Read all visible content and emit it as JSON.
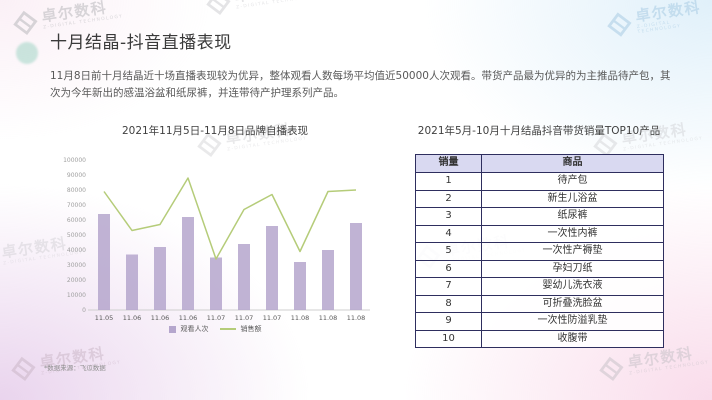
{
  "brand": {
    "name": "卓尔数科",
    "subtitle": "Z-DIGITAL TECHNOLOGY"
  },
  "slide": {
    "title": "十月结晶-抖音直播表现",
    "body": "11月8日前十月结晶近十场直播表现较为优异，整体观看人数每场平均值近50000人次观看。带货产品最为优异的为主推品待产包，其次为今年新出的感温浴盆和纸尿裤，并连带待产护理系列产品。",
    "source_note": "*数据来源：飞瓜数据"
  },
  "colors": {
    "bar": "#b5a6cd",
    "line": "#b5cc79",
    "axis": "#cfcfcf",
    "tick_label": "#a0a0a0",
    "x_label": "#595959",
    "table_border": "#2e2e5e",
    "table_header_bg": "#d9d9f1"
  },
  "chart_data": {
    "type": "bar",
    "title": "2021年11月5日-11月8日品牌自播表现",
    "categories": [
      "11.05",
      "11.06",
      "11.06",
      "11.06",
      "11.07",
      "11.07",
      "11.07",
      "11.08",
      "11.08",
      "11.08"
    ],
    "series": [
      {
        "name": "观看人次",
        "type": "bar",
        "values": [
          64000,
          37000,
          42000,
          62000,
          35000,
          44000,
          56000,
          32000,
          40000,
          58000
        ]
      },
      {
        "name": "销售额",
        "type": "line",
        "values": [
          79000,
          53000,
          57000,
          88000,
          34000,
          67000,
          77000,
          39000,
          79000,
          80000
        ]
      }
    ],
    "xlabel": "",
    "ylabel": "",
    "ylim": [
      0,
      100000
    ],
    "ytick_step": 10000,
    "grid": false,
    "legend_position": "bottom"
  },
  "table": {
    "title": "2021年5月-10月十月结晶抖音带货销量TOP10产品",
    "headers": [
      "销量",
      "商品"
    ],
    "rows": [
      [
        "1",
        "待产包"
      ],
      [
        "2",
        "新生儿浴盆"
      ],
      [
        "3",
        "纸尿裤"
      ],
      [
        "4",
        "一次性内裤"
      ],
      [
        "5",
        "一次性产褥垫"
      ],
      [
        "6",
        "孕妇刀纸"
      ],
      [
        "7",
        "婴幼儿洗衣液"
      ],
      [
        "8",
        "可折叠洗脸盆"
      ],
      [
        "9",
        "一次性防溢乳垫"
      ],
      [
        "10",
        "收腹带"
      ]
    ]
  }
}
